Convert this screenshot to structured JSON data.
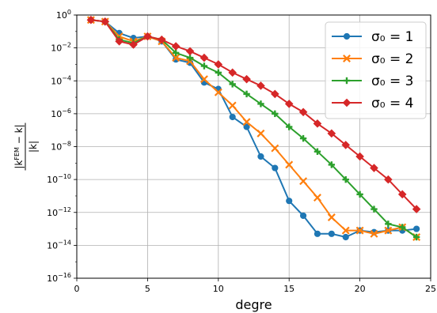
{
  "chart_data": {
    "type": "line",
    "xlabel": "degre",
    "ylabel_numerator": "|k^FEM − k|",
    "ylabel_denominator": "|k|",
    "x_ticks": [
      "0",
      "5",
      "10",
      "15",
      "20",
      "25"
    ],
    "y_ticks": [
      "10^-16",
      "10^-14",
      "10^-12",
      "10^-10",
      "10^-8",
      "10^-6",
      "10^-4",
      "10^-2",
      "10^0"
    ],
    "xlim": [
      0,
      25
    ],
    "ylim_log10": [
      -16,
      0
    ],
    "y_scale": "log",
    "grid": true,
    "legend_position": "upper right",
    "series": [
      {
        "name": "σ₀ = 1",
        "color": "#1f77b4",
        "marker": "circle",
        "x": [
          1,
          2,
          3,
          4,
          5,
          6,
          7,
          8,
          9,
          10,
          11,
          12,
          13,
          14,
          15,
          16,
          17,
          18,
          19,
          20,
          21,
          22,
          23,
          24
        ],
        "log10_y": [
          -0.3,
          -0.4,
          -1.1,
          -1.4,
          -1.3,
          -1.6,
          -2.7,
          -2.9,
          -4.1,
          -4.5,
          -6.2,
          -6.8,
          -8.6,
          -9.3,
          -11.3,
          -12.2,
          -13.3,
          -13.3,
          -13.5,
          -13.1,
          -13.2,
          -13.1,
          -13.1,
          -13.0
        ]
      },
      {
        "name": "σ₀ = 2",
        "color": "#ff7f0e",
        "marker": "x",
        "x": [
          1,
          2,
          3,
          4,
          5,
          6,
          7,
          8,
          9,
          10,
          11,
          12,
          13,
          14,
          15,
          16,
          17,
          18,
          19,
          20,
          21,
          22,
          23,
          24
        ],
        "log10_y": [
          -0.3,
          -0.4,
          -1.3,
          -1.6,
          -1.3,
          -1.6,
          -2.6,
          -2.8,
          -3.9,
          -4.7,
          -5.5,
          -6.5,
          -7.2,
          -8.1,
          -9.1,
          -10.1,
          -11.1,
          -12.3,
          -13.1,
          -13.1,
          -13.3,
          -13.1,
          -12.9,
          -13.5
        ]
      },
      {
        "name": "σ₀ = 3",
        "color": "#2ca02c",
        "marker": "plus",
        "x": [
          1,
          2,
          3,
          4,
          5,
          6,
          7,
          8,
          9,
          10,
          11,
          12,
          13,
          14,
          15,
          16,
          17,
          18,
          19,
          20,
          21,
          22,
          23,
          24
        ],
        "log10_y": [
          -0.3,
          -0.4,
          -1.5,
          -1.7,
          -1.3,
          -1.5,
          -2.3,
          -2.6,
          -3.1,
          -3.5,
          -4.2,
          -4.8,
          -5.4,
          -6.0,
          -6.8,
          -7.5,
          -8.3,
          -9.1,
          -10.0,
          -10.9,
          -11.8,
          -12.7,
          -12.9,
          -13.5
        ]
      },
      {
        "name": "σ₀ = 4",
        "color": "#d62728",
        "marker": "diamond",
        "x": [
          1,
          2,
          3,
          4,
          5,
          6,
          7,
          8,
          9,
          10,
          11,
          12,
          13,
          14,
          15,
          16,
          17,
          18,
          19,
          20,
          21,
          22,
          23,
          24
        ],
        "log10_y": [
          -0.3,
          -0.4,
          -1.6,
          -1.8,
          -1.3,
          -1.5,
          -1.9,
          -2.2,
          -2.6,
          -3.0,
          -3.5,
          -3.9,
          -4.3,
          -4.8,
          -5.4,
          -5.9,
          -6.6,
          -7.2,
          -7.9,
          -8.6,
          -9.3,
          -10.0,
          -10.9,
          -11.8
        ]
      }
    ]
  }
}
